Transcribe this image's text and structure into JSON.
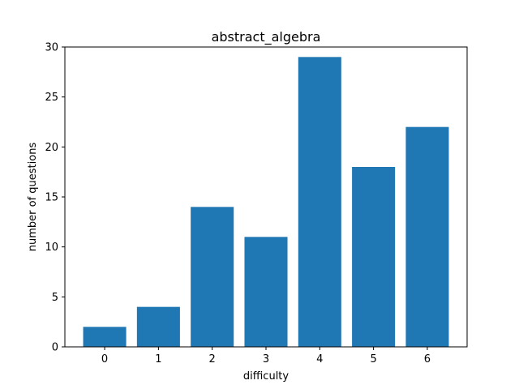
{
  "chart_data": {
    "type": "bar",
    "title": "abstract_algebra",
    "xlabel": "difficulty",
    "ylabel": "number of questions",
    "categories": [
      "0",
      "1",
      "2",
      "3",
      "4",
      "5",
      "6"
    ],
    "values": [
      2,
      4,
      14,
      11,
      29,
      18,
      22
    ],
    "ylim": [
      0,
      30
    ],
    "yticks": [
      0,
      5,
      10,
      15,
      20,
      25,
      30
    ],
    "grid": false,
    "bar_color": "#1f77b4"
  }
}
